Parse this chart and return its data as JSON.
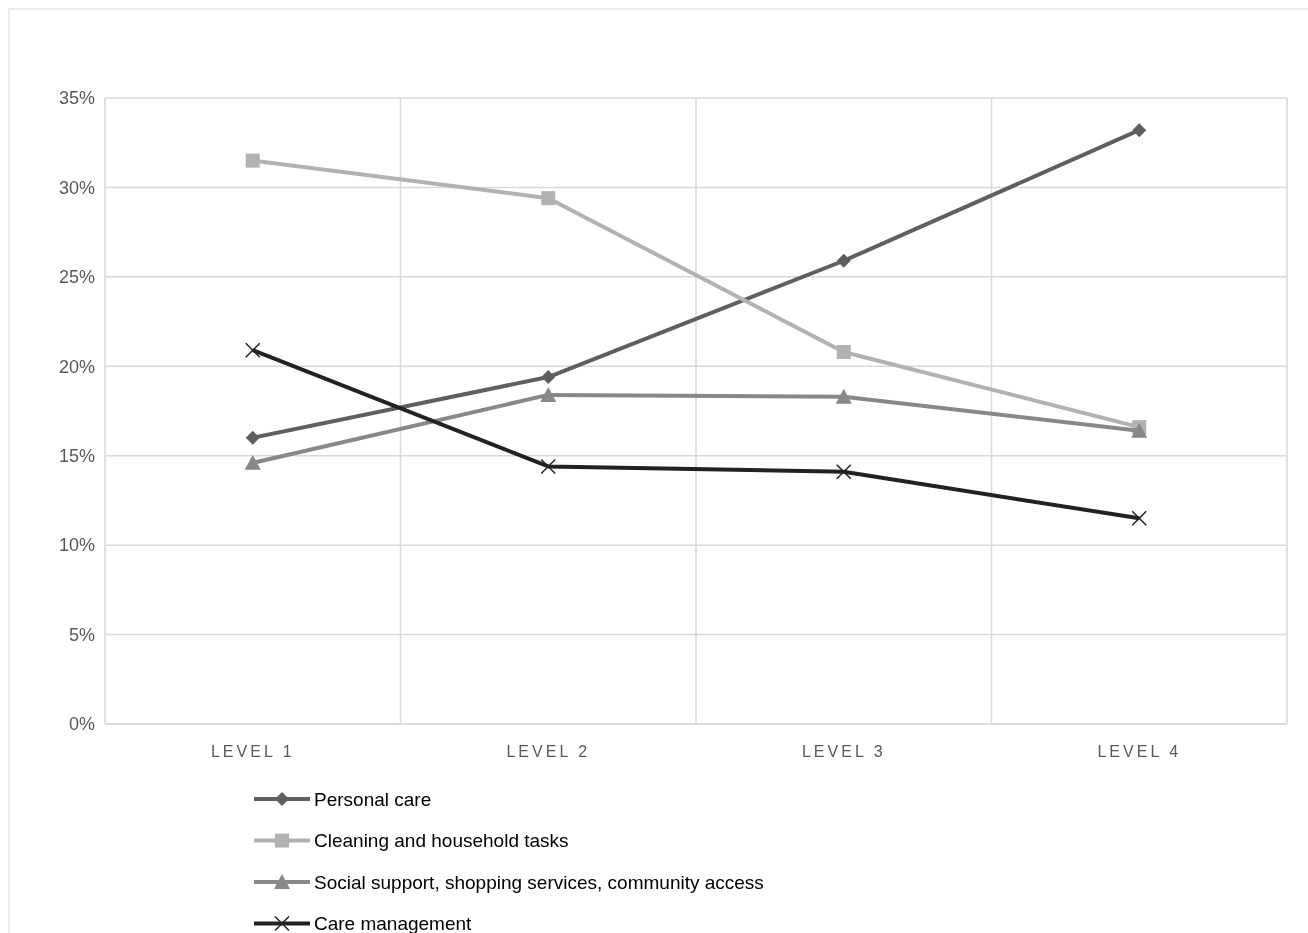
{
  "chart_data": {
    "type": "line",
    "categories": [
      "LEVEL 1",
      "LEVEL 2",
      "LEVEL 3",
      "LEVEL 4"
    ],
    "ylim": [
      0,
      0.35
    ],
    "yticks": [
      {
        "value": 0,
        "label": "0%"
      },
      {
        "value": 0.05,
        "label": "5%"
      },
      {
        "value": 0.1,
        "label": "10%"
      },
      {
        "value": 0.15,
        "label": "15%"
      },
      {
        "value": 0.2,
        "label": "20%"
      },
      {
        "value": 0.25,
        "label": "25%"
      },
      {
        "value": 0.3,
        "label": "30%"
      },
      {
        "value": 0.35,
        "label": "35%"
      }
    ],
    "grid": true,
    "legend": "bottom",
    "series": [
      {
        "name": "Personal care",
        "color": "#5f5f5f",
        "marker": "diamond",
        "values": [
          0.16,
          0.194,
          0.259,
          0.332
        ]
      },
      {
        "name": "Cleaning and household tasks",
        "color": "#b2b2b2",
        "marker": "square",
        "values": [
          0.315,
          0.294,
          0.208,
          0.166
        ]
      },
      {
        "name": "Social support, shopping services, community access",
        "color": "#888888",
        "marker": "triangle",
        "values": [
          0.146,
          0.184,
          0.183,
          0.164
        ]
      },
      {
        "name": "Care management",
        "color": "#222222",
        "marker": "cross",
        "values": [
          0.209,
          0.144,
          0.141,
          0.115
        ]
      }
    ]
  }
}
